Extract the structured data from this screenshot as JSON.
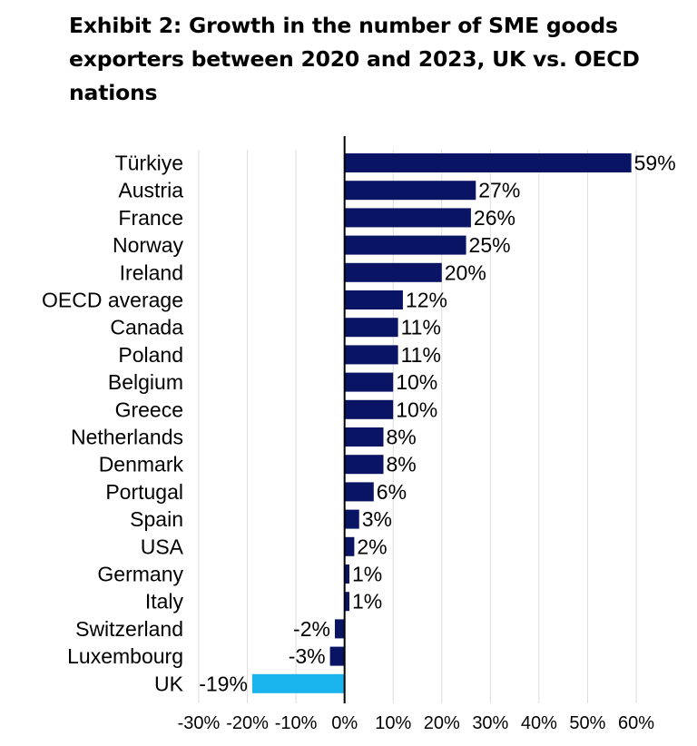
{
  "chart_data": {
    "type": "bar",
    "orientation": "horizontal",
    "title": "Exhibit 2: Growth in the number of SME goods exporters between 2020 and 2023, UK vs. OECD nations",
    "xlabel": "",
    "ylabel": "",
    "xlim": [
      -30,
      60
    ],
    "x_ticks": [
      -30,
      -20,
      -10,
      0,
      10,
      20,
      30,
      40,
      50,
      60
    ],
    "x_tick_labels": [
      "-30%",
      "-20%",
      "-10%",
      "0%",
      "10%",
      "20%",
      "30%",
      "40%",
      "50%",
      "60%"
    ],
    "grid": true,
    "categories": [
      "Türkiye",
      "Austria",
      "France",
      "Norway",
      "Ireland",
      "OECD average",
      "Canada",
      "Poland",
      "Belgium",
      "Greece",
      "Netherlands",
      "Denmark",
      "Portugal",
      "Spain",
      "USA",
      "Germany",
      "Italy",
      "Switzerland",
      "Luxembourg",
      "UK"
    ],
    "values": [
      59,
      27,
      26,
      25,
      20,
      12,
      11,
      11,
      10,
      10,
      8,
      8,
      6,
      3,
      2,
      1,
      1,
      -2,
      -3,
      -19
    ],
    "value_labels": [
      "59%",
      "27%",
      "26%",
      "25%",
      "20%",
      "12%",
      "11%",
      "11%",
      "10%",
      "10%",
      "8%",
      "8%",
      "6%",
      "3%",
      "2%",
      "1%",
      "1%",
      "-2%",
      "-3%",
      "-19%"
    ],
    "colors": {
      "default": "#0a1464",
      "highlight": "#19b4ee",
      "highlight_category": "UK"
    }
  }
}
